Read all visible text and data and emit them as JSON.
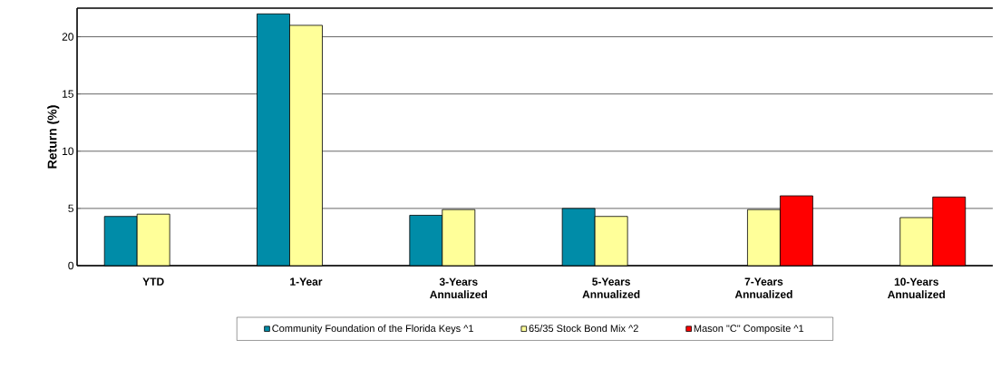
{
  "chart_data": {
    "type": "bar",
    "ylabel": "Return (%)",
    "categories": [
      "YTD",
      "1-Year",
      "3-Years Annualized",
      "5-Years Annualized",
      "7-Years Annualized",
      "10-Years Annualized"
    ],
    "series": [
      {
        "name": "Community Foundation of the Florida Keys ^1",
        "color": "#008ca8",
        "values": [
          4.3,
          22.0,
          4.4,
          5.0,
          null,
          null
        ]
      },
      {
        "name": "65/35 Stock Bond Mix ^2",
        "color": "#ffff99",
        "values": [
          4.5,
          21.0,
          4.9,
          4.3,
          4.9,
          4.2
        ]
      },
      {
        "name": "Mason \"C\" Composite ^1",
        "color": "#ff0000",
        "values": [
          null,
          null,
          null,
          null,
          6.1,
          6.0
        ]
      }
    ],
    "ylim": [
      0,
      22.5
    ],
    "yticks": [
      0,
      5,
      10,
      15,
      20
    ],
    "grid": "y",
    "legend": "bottom"
  }
}
